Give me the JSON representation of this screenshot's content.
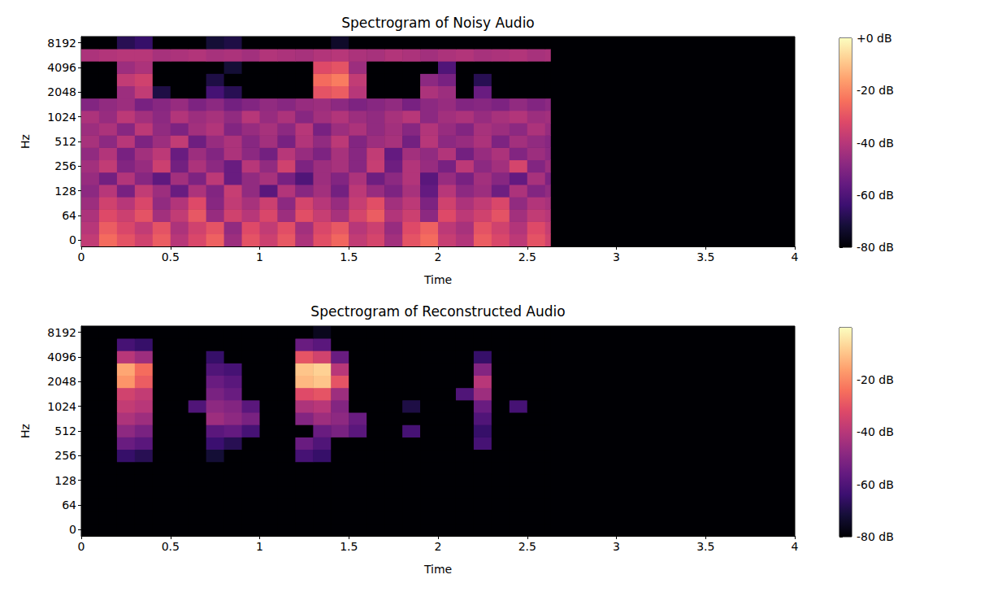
{
  "chart_data": [
    {
      "type": "heatmap",
      "title": "Spectrogram of Noisy Audio",
      "xlabel": "Time",
      "ylabel": "Hz",
      "xlim": [
        0,
        4
      ],
      "xticks": [
        0,
        0.5,
        1,
        1.5,
        2,
        2.5,
        3,
        3.5,
        4
      ],
      "y_categories": [
        "0",
        null,
        "64",
        null,
        "128",
        null,
        "256",
        null,
        "512",
        null,
        "1024",
        null,
        "2048",
        null,
        "4096",
        null,
        "8192"
      ],
      "time_bins": [
        0,
        0.1,
        0.2,
        0.3,
        0.4,
        0.5,
        0.6,
        0.7,
        0.8,
        0.9,
        1,
        1.1,
        1.2,
        1.3,
        1.4,
        1.5,
        1.6,
        1.7,
        1.8,
        1.9,
        2,
        2.1,
        2.2,
        2.3,
        2.4,
        2.5,
        2.6,
        2.63
      ],
      "values": [
        [
          -38,
          -25,
          -30,
          -35,
          -28,
          -40,
          -33,
          -27,
          -45,
          -30,
          -36,
          -29,
          -42,
          -31,
          -26,
          -38,
          -34,
          -44,
          -30,
          -25,
          -37,
          -41,
          -28,
          -33,
          -39,
          -30,
          -35
        ],
        [
          -40,
          -28,
          -33,
          -38,
          -30,
          -42,
          -35,
          -30,
          -47,
          -32,
          -38,
          -31,
          -44,
          -33,
          -29,
          -40,
          -36,
          -46,
          -32,
          -27,
          -39,
          -43,
          -30,
          -35,
          -41,
          -32,
          -37
        ],
        [
          -42,
          -32,
          -36,
          -30,
          -44,
          -38,
          -29,
          -46,
          -35,
          -40,
          -33,
          -45,
          -31,
          -37,
          -43,
          -34,
          -28,
          -41,
          -36,
          -48,
          -32,
          -39,
          -35,
          -30,
          -44,
          -38,
          -40
        ],
        [
          -45,
          -35,
          -40,
          -33,
          -47,
          -41,
          -32,
          -49,
          -38,
          -43,
          -36,
          -48,
          -34,
          -40,
          -46,
          -37,
          -31,
          -44,
          -39,
          -51,
          -35,
          -42,
          -38,
          -33,
          -47,
          -41,
          -43
        ],
        [
          -48,
          -40,
          -52,
          -38,
          -45,
          -55,
          -42,
          -50,
          -37,
          -47,
          -58,
          -41,
          -49,
          -44,
          -53,
          -39,
          -46,
          -51,
          -43,
          -56,
          -40,
          -48,
          -45,
          -54,
          -42,
          -50,
          -47
        ],
        [
          -46,
          -53,
          -41,
          -49,
          -57,
          -44,
          -51,
          -39,
          -55,
          -47,
          -43,
          -52,
          -60,
          -45,
          -50,
          -42,
          -54,
          -48,
          -41,
          -58,
          -46,
          -52,
          -44,
          -49,
          -56,
          -43,
          -51
        ],
        [
          -44,
          -38,
          -50,
          -46,
          -36,
          -53,
          -42,
          -48,
          -55,
          -40,
          -47,
          -35,
          -51,
          -45,
          -43,
          -49,
          -37,
          -54,
          -41,
          -46,
          -52,
          -39,
          -48,
          -44,
          -34,
          -50,
          -45
        ],
        [
          -47,
          -41,
          -52,
          -44,
          -39,
          -55,
          -45,
          -50,
          -42,
          -48,
          -53,
          -40,
          -46,
          -51,
          -43,
          -49,
          -38,
          -56,
          -44,
          -47,
          -41,
          -53,
          -46,
          -42,
          -50,
          -45,
          -48
        ],
        [
          -43,
          -48,
          -40,
          -51,
          -45,
          -38,
          -54,
          -46,
          -42,
          -49,
          -44,
          -52,
          -41,
          -47,
          -39,
          -50,
          -45,
          -43,
          -53,
          -40,
          -48,
          -46,
          -42,
          -51,
          -44,
          -47,
          -49
        ],
        [
          -45,
          -42,
          -49,
          -39,
          -47,
          -51,
          -44,
          -41,
          -50,
          -46,
          -43,
          -48,
          -40,
          -52,
          -45,
          -42,
          -47,
          -44,
          -49,
          -41,
          -46,
          -50,
          -43,
          -45,
          -48,
          -42,
          -46
        ],
        [
          -42,
          -46,
          -39,
          -44,
          -48,
          -41,
          -45,
          -43,
          -47,
          -40,
          -46,
          -42,
          -49,
          -44,
          -41,
          -45,
          -47,
          -43,
          -40,
          -48,
          -44,
          -42,
          -46,
          -43,
          -41,
          -45,
          -44
        ],
        [
          -50,
          -47,
          -45,
          -52,
          -49,
          -46,
          -51,
          -48,
          -53,
          -50,
          -47,
          -49,
          -46,
          -45,
          -48,
          -51,
          -49,
          -47,
          -52,
          -48,
          -46,
          -50,
          -49,
          -51,
          -47,
          -50,
          -48
        ],
        [
          -80,
          -80,
          -45,
          -38,
          -70,
          -80,
          -80,
          -62,
          -68,
          -80,
          -80,
          -80,
          -80,
          -30,
          -28,
          -40,
          -80,
          -80,
          -80,
          -42,
          -45,
          -80,
          -55,
          -80,
          -80,
          -80,
          -80
        ],
        [
          -80,
          -80,
          -38,
          -35,
          -80,
          -80,
          -80,
          -70,
          -80,
          -80,
          -80,
          -80,
          -80,
          -25,
          -22,
          -38,
          -80,
          -80,
          -80,
          -48,
          -52,
          -80,
          -68,
          -80,
          -80,
          -80,
          -80
        ],
        [
          -80,
          -80,
          -45,
          -42,
          -80,
          -80,
          -80,
          -80,
          -72,
          -80,
          -80,
          -80,
          -80,
          -32,
          -30,
          -45,
          -80,
          -80,
          -80,
          -80,
          -60,
          -80,
          -80,
          -80,
          -80,
          -80,
          -80
        ],
        [
          -42,
          -41,
          -40,
          -40,
          -43,
          -42,
          -41,
          -43,
          -42,
          -44,
          -41,
          -42,
          -43,
          -41,
          -40,
          -42,
          -43,
          -41,
          -42,
          -44,
          -42,
          -41,
          -43,
          -42,
          -41,
          -43,
          -42
        ],
        [
          -80,
          -80,
          -68,
          -65,
          -80,
          -80,
          -80,
          -72,
          -70,
          -80,
          -80,
          -80,
          -80,
          -80,
          -74,
          -80,
          -80,
          -80,
          -80,
          -80,
          -80,
          -80,
          -80,
          -80,
          -80,
          -80,
          -80
        ]
      ],
      "colorbar": {
        "range": [
          -80,
          0
        ],
        "ticks": [
          {
            "value": 0,
            "label": "+0 dB"
          },
          {
            "value": -20,
            "label": "-20 dB"
          },
          {
            "value": -40,
            "label": "-40 dB"
          },
          {
            "value": -60,
            "label": "-60 dB"
          },
          {
            "value": -80,
            "label": "-80 dB"
          }
        ]
      }
    },
    {
      "type": "heatmap",
      "title": "Spectrogram of Reconstructed Audio",
      "xlabel": "Time",
      "ylabel": "Hz",
      "xlim": [
        0,
        4
      ],
      "xticks": [
        0,
        0.5,
        1,
        1.5,
        2,
        2.5,
        3,
        3.5,
        4
      ],
      "y_categories": [
        "0",
        null,
        "64",
        null,
        "128",
        null,
        "256",
        null,
        "512",
        null,
        "1024",
        null,
        "2048",
        null,
        "4096",
        null,
        "8192"
      ],
      "time_bins": [
        0,
        0.1,
        0.2,
        0.3,
        0.4,
        0.5,
        0.6,
        0.7,
        0.8,
        0.9,
        1,
        1.1,
        1.2,
        1.3,
        1.4,
        1.5,
        1.6,
        1.7,
        1.8,
        1.9,
        2,
        2.1,
        2.2,
        2.3,
        2.4,
        2.5,
        2.6,
        2.63
      ],
      "values": [
        [
          -80,
          -80,
          -80,
          -80,
          -80,
          -80,
          -80,
          -80,
          -80,
          -80,
          -80,
          -80,
          -80,
          -80,
          -80,
          -80,
          -80,
          -80,
          -80,
          -80,
          -80,
          -80,
          -80,
          -80,
          -80,
          -80,
          -80
        ],
        [
          -80,
          -80,
          -80,
          -80,
          -80,
          -80,
          -80,
          -80,
          -80,
          -80,
          -80,
          -80,
          -80,
          -80,
          -80,
          -80,
          -80,
          -80,
          -80,
          -80,
          -80,
          -80,
          -80,
          -80,
          -80,
          -80,
          -80
        ],
        [
          -80,
          -80,
          -80,
          -80,
          -80,
          -80,
          -80,
          -80,
          -80,
          -80,
          -80,
          -80,
          -80,
          -80,
          -80,
          -80,
          -80,
          -80,
          -80,
          -80,
          -80,
          -80,
          -80,
          -80,
          -80,
          -80,
          -80
        ],
        [
          -80,
          -80,
          -80,
          -80,
          -80,
          -80,
          -80,
          -80,
          -80,
          -80,
          -80,
          -80,
          -80,
          -80,
          -80,
          -80,
          -80,
          -80,
          -80,
          -80,
          -80,
          -80,
          -80,
          -80,
          -80,
          -80,
          -80
        ],
        [
          -80,
          -80,
          -80,
          -80,
          -80,
          -80,
          -80,
          -80,
          -80,
          -80,
          -80,
          -80,
          -80,
          -80,
          -80,
          -80,
          -80,
          -80,
          -80,
          -80,
          -80,
          -80,
          -80,
          -80,
          -80,
          -80,
          -80
        ],
        [
          -80,
          -80,
          -80,
          -80,
          -80,
          -80,
          -80,
          -80,
          -80,
          -80,
          -80,
          -80,
          -80,
          -80,
          -80,
          -80,
          -80,
          -80,
          -80,
          -80,
          -80,
          -80,
          -80,
          -80,
          -80,
          -80,
          -80
        ],
        [
          -80,
          -80,
          -65,
          -68,
          -80,
          -80,
          -80,
          -72,
          -80,
          -80,
          -80,
          -80,
          -62,
          -65,
          -80,
          -80,
          -80,
          -80,
          -80,
          -80,
          -80,
          -80,
          -80,
          -80,
          -80,
          -80,
          -80
        ],
        [
          -80,
          -80,
          -55,
          -58,
          -80,
          -80,
          -80,
          -64,
          -68,
          -80,
          -80,
          -80,
          -55,
          -60,
          -80,
          -80,
          -80,
          -80,
          -80,
          -80,
          -80,
          -80,
          -62,
          -80,
          -80,
          -80,
          -80
        ],
        [
          -80,
          -80,
          -48,
          -52,
          -80,
          -80,
          -80,
          -58,
          -56,
          -62,
          -80,
          -80,
          -80,
          -55,
          -52,
          -58,
          -80,
          -80,
          -62,
          -80,
          -80,
          -80,
          -65,
          -80,
          -80,
          -80,
          -80
        ],
        [
          -80,
          -80,
          -42,
          -45,
          -80,
          -80,
          -80,
          -45,
          -48,
          -52,
          -80,
          -80,
          -50,
          -45,
          -48,
          -55,
          -80,
          -80,
          -80,
          -80,
          -80,
          -80,
          -60,
          -80,
          -80,
          -80,
          -80
        ],
        [
          -80,
          -80,
          -38,
          -40,
          -80,
          -80,
          -60,
          -48,
          -50,
          -58,
          -80,
          -80,
          -42,
          -40,
          -50,
          -80,
          -80,
          -80,
          -70,
          -80,
          -80,
          -80,
          -55,
          -80,
          -62,
          -80,
          -80
        ],
        [
          -80,
          -80,
          -35,
          -38,
          -80,
          -80,
          -80,
          -52,
          -55,
          -80,
          -80,
          -80,
          -32,
          -30,
          -45,
          -80,
          -80,
          -80,
          -80,
          -80,
          -80,
          -60,
          -45,
          -80,
          -80,
          -80,
          -80
        ],
        [
          -80,
          -80,
          -18,
          -28,
          -80,
          -80,
          -80,
          -55,
          -58,
          -80,
          -80,
          -80,
          -12,
          -10,
          -30,
          -80,
          -80,
          -80,
          -80,
          -80,
          -80,
          -80,
          -40,
          -80,
          -80,
          -80,
          -80
        ],
        [
          -80,
          -80,
          -15,
          -25,
          -80,
          -80,
          -80,
          -60,
          -62,
          -80,
          -80,
          -80,
          -10,
          -8,
          -40,
          -80,
          -80,
          -80,
          -80,
          -80,
          -80,
          -80,
          -50,
          -80,
          -80,
          -80,
          -80
        ],
        [
          -80,
          -80,
          -40,
          -45,
          -80,
          -80,
          -80,
          -65,
          -80,
          -80,
          -80,
          -80,
          -30,
          -35,
          -55,
          -80,
          -80,
          -80,
          -80,
          -80,
          -80,
          -80,
          -65,
          -80,
          -80,
          -80,
          -80
        ],
        [
          -80,
          -80,
          -62,
          -65,
          -80,
          -80,
          -80,
          -80,
          -80,
          -80,
          -80,
          -80,
          -55,
          -58,
          -80,
          -80,
          -80,
          -80,
          -80,
          -80,
          -80,
          -80,
          -80,
          -80,
          -80,
          -80,
          -80
        ],
        [
          -80,
          -80,
          -80,
          -80,
          -80,
          -80,
          -80,
          -80,
          -80,
          -80,
          -80,
          -80,
          -80,
          -76,
          -80,
          -80,
          -80,
          -80,
          -80,
          -80,
          -80,
          -80,
          -80,
          -80,
          -80,
          -80,
          -80
        ]
      ],
      "colorbar": {
        "range": [
          -80,
          -0.3
        ],
        "ticks": [
          {
            "value": -20,
            "label": "-20 dB"
          },
          {
            "value": -40,
            "label": "-40 dB"
          },
          {
            "value": -60,
            "label": "-60 dB"
          },
          {
            "value": -80,
            "label": "-80 dB"
          }
        ]
      }
    }
  ]
}
